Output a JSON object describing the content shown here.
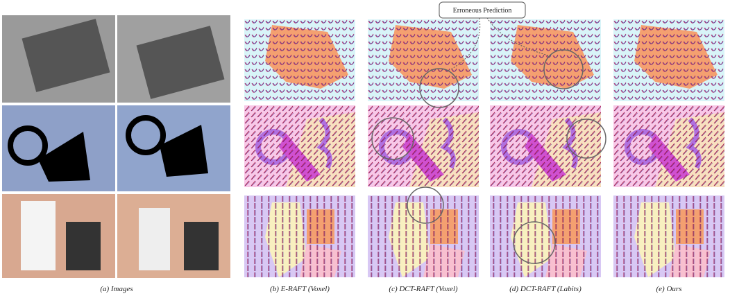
{
  "callout": "Erroneous Prediction",
  "captions": [
    "(a) Images",
    "(b) E-RAFT (Voxel)",
    "(c) DCT-RAFT (Voxel)",
    "(d) DCT-RAFT (Labits)",
    "(e) Ours"
  ]
}
